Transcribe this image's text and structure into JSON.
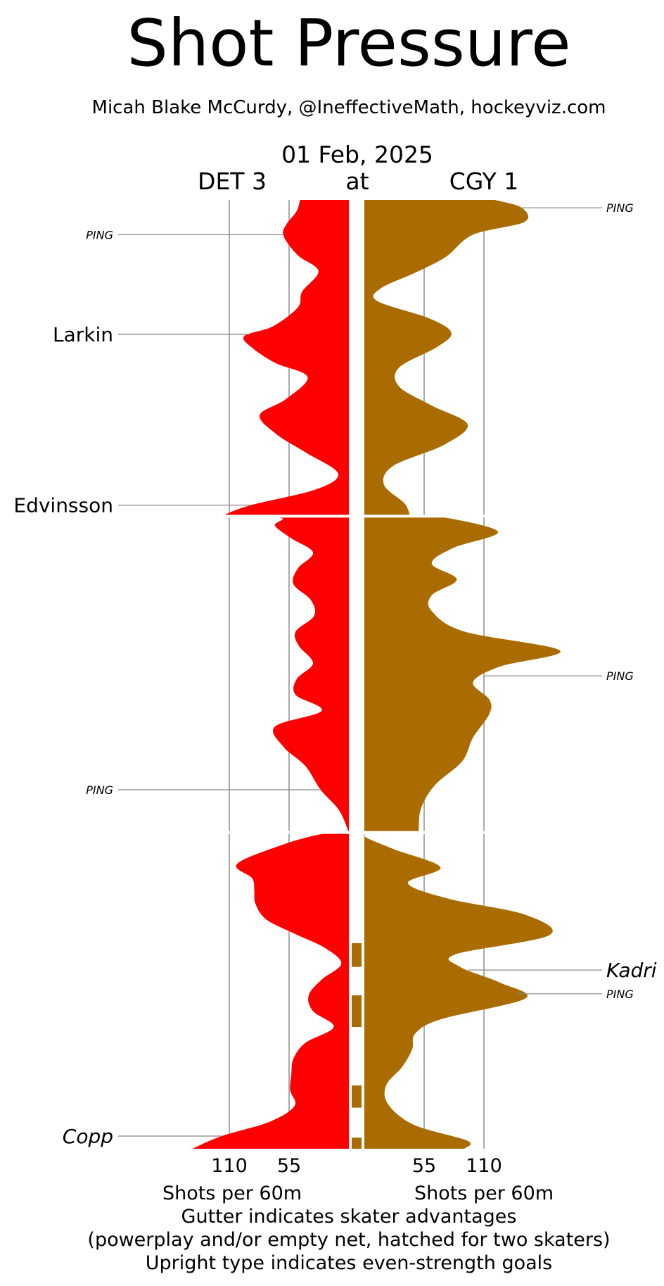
{
  "header": {
    "title": "Shot Pressure",
    "subtitle": "Micah Blake McCurdy, @IneffectiveMath, hockeyviz.com",
    "date": "01 Feb, 2025",
    "away_team": "DET 3",
    "at": "at",
    "home_team": "CGY 1"
  },
  "footer": {
    "xlabel_left": "Shots per 60m",
    "xlabel_right": "Shots per 60m",
    "line1": "Gutter indicates skater advantages",
    "line2": "(powerplay and/or empty net, hatched for two skaters)",
    "line3": "Upright type indicates even-strength goals"
  },
  "colors": {
    "away": "#ff0000",
    "home": "#aa6c00",
    "grid": "#aaaaaa",
    "annotation_line": "#888888"
  },
  "chart_data": {
    "type": "area",
    "orientation": "vertical-time",
    "time_axis": {
      "unit": "minutes",
      "range": [
        0,
        60
      ],
      "period_breaks": [
        20,
        40
      ]
    },
    "value_axis": {
      "label": "Shots per 60m",
      "ticks": [
        55,
        110
      ]
    },
    "series": [
      {
        "name": "DET 3",
        "side": "left",
        "points": [
          [
            0,
            45
          ],
          [
            0.7,
            48
          ],
          [
            1.6,
            58
          ],
          [
            2.3,
            60
          ],
          [
            3.5,
            47
          ],
          [
            4.5,
            28
          ],
          [
            5.8,
            43
          ],
          [
            6.8,
            47
          ],
          [
            8.0,
            70
          ],
          [
            8.6,
            96
          ],
          [
            9.3,
            90
          ],
          [
            10.3,
            68
          ],
          [
            11.2,
            38
          ],
          [
            12.6,
            58
          ],
          [
            13.6,
            82
          ],
          [
            14.8,
            67
          ],
          [
            16.0,
            39
          ],
          [
            17.3,
            10
          ],
          [
            18.3,
            30
          ],
          [
            19.3,
            90
          ],
          [
            19.9,
            114
          ],
          [
            20,
            114
          ],
          [
            20.1,
            63
          ],
          [
            20.6,
            68
          ],
          [
            21.4,
            53
          ],
          [
            22.3,
            33
          ],
          [
            23.3,
            47
          ],
          [
            24.3,
            51
          ],
          [
            25.3,
            35
          ],
          [
            26.3,
            32
          ],
          [
            27.3,
            49
          ],
          [
            28.2,
            46
          ],
          [
            29.3,
            33
          ],
          [
            30.3,
            48
          ],
          [
            31.3,
            49
          ],
          [
            32.3,
            25
          ],
          [
            33.3,
            68
          ],
          [
            34.6,
            60
          ],
          [
            35.8,
            40
          ],
          [
            37.3,
            26
          ],
          [
            38.6,
            9
          ],
          [
            40,
            0
          ],
          [
            40.1,
            25
          ],
          [
            40.8,
            62
          ],
          [
            42.0,
            103
          ],
          [
            42.9,
            89
          ],
          [
            43.7,
            87
          ],
          [
            44.5,
            86
          ],
          [
            45.5,
            76
          ],
          [
            46.4,
            50
          ],
          [
            47.3,
            22
          ],
          [
            48.3,
            7
          ],
          [
            49.3,
            25
          ],
          [
            50.3,
            37
          ],
          [
            51.3,
            33
          ],
          [
            52.3,
            14
          ],
          [
            53.3,
            40
          ],
          [
            54.3,
            51
          ],
          [
            55.3,
            53
          ],
          [
            56.3,
            54
          ],
          [
            57.3,
            50
          ],
          [
            58.3,
            73
          ],
          [
            59.2,
            117
          ],
          [
            60,
            144
          ]
        ]
      },
      {
        "name": "CGY 1",
        "side": "right",
        "points": [
          [
            0,
            120
          ],
          [
            0.5,
            145
          ],
          [
            1.4,
            147
          ],
          [
            2.2,
            100
          ],
          [
            3.6,
            75
          ],
          [
            4.6,
            47
          ],
          [
            5.6,
            15
          ],
          [
            6.4,
            12
          ],
          [
            7.5,
            60
          ],
          [
            8.4,
            80
          ],
          [
            9.3,
            67
          ],
          [
            10.6,
            32
          ],
          [
            11.8,
            32
          ],
          [
            13.0,
            62
          ],
          [
            14.2,
            95
          ],
          [
            15.5,
            73
          ],
          [
            16.8,
            27
          ],
          [
            18.0,
            18
          ],
          [
            19.2,
            37
          ],
          [
            20,
            42
          ],
          [
            20.1,
            75
          ],
          [
            21.0,
            123
          ],
          [
            22.0,
            82
          ],
          [
            23.0,
            62
          ],
          [
            24.0,
            85
          ],
          [
            25.0,
            62
          ],
          [
            26.0,
            62
          ],
          [
            27.3,
            92
          ],
          [
            28.5,
            180
          ],
          [
            29.5,
            125
          ],
          [
            30.5,
            100
          ],
          [
            31.6,
            115
          ],
          [
            32.5,
            115
          ],
          [
            34.0,
            100
          ],
          [
            35.5,
            90
          ],
          [
            37.0,
            65
          ],
          [
            38.5,
            52
          ],
          [
            40,
            50
          ],
          [
            40.1,
            0
          ],
          [
            41.0,
            25
          ],
          [
            42.2,
            70
          ],
          [
            43.2,
            40
          ],
          [
            44.2,
            78
          ],
          [
            45.2,
            148
          ],
          [
            46.5,
            170
          ],
          [
            47.7,
            84
          ],
          [
            48.5,
            88
          ],
          [
            49.5,
            125
          ],
          [
            50.5,
            148
          ],
          [
            51.8,
            71
          ],
          [
            52.7,
            47
          ],
          [
            53.7,
            44
          ],
          [
            54.8,
            35
          ],
          [
            56.0,
            20
          ],
          [
            57.2,
            22
          ],
          [
            58.5,
            46
          ],
          [
            59.5,
            95
          ],
          [
            60,
            92
          ]
        ]
      }
    ],
    "advantages": [
      {
        "team": "CGY 1",
        "start": 47.0,
        "end": 48.5,
        "skaters": 1
      },
      {
        "team": "CGY 1",
        "start": 50.3,
        "end": 52.3,
        "skaters": 1
      },
      {
        "team": "CGY 1",
        "start": 56.0,
        "end": 57.4,
        "skaters": 1
      },
      {
        "team": "CGY 1",
        "start": 59.3,
        "end": 60.0,
        "skaters": 1
      }
    ],
    "goals": [
      {
        "team": "DET 3",
        "minute": 2.2,
        "label": "PING",
        "style": "post"
      },
      {
        "team": "DET 3",
        "minute": 8.5,
        "label": "Larkin",
        "style": "goal-even"
      },
      {
        "team": "DET 3",
        "minute": 19.3,
        "label": "Edvinsson",
        "style": "goal-even"
      },
      {
        "team": "DET 3",
        "minute": 37.3,
        "label": "PING",
        "style": "post"
      },
      {
        "team": "DET 3",
        "minute": 59.2,
        "label": "Copp",
        "style": "goal-special"
      },
      {
        "team": "CGY 1",
        "minute": 0.5,
        "label": "PING",
        "style": "post"
      },
      {
        "team": "CGY 1",
        "minute": 30.1,
        "label": "PING",
        "style": "post"
      },
      {
        "team": "CGY 1",
        "minute": 48.7,
        "label": "Kadri",
        "style": "goal-special"
      },
      {
        "team": "CGY 1",
        "minute": 50.2,
        "label": "PING",
        "style": "post"
      }
    ]
  }
}
